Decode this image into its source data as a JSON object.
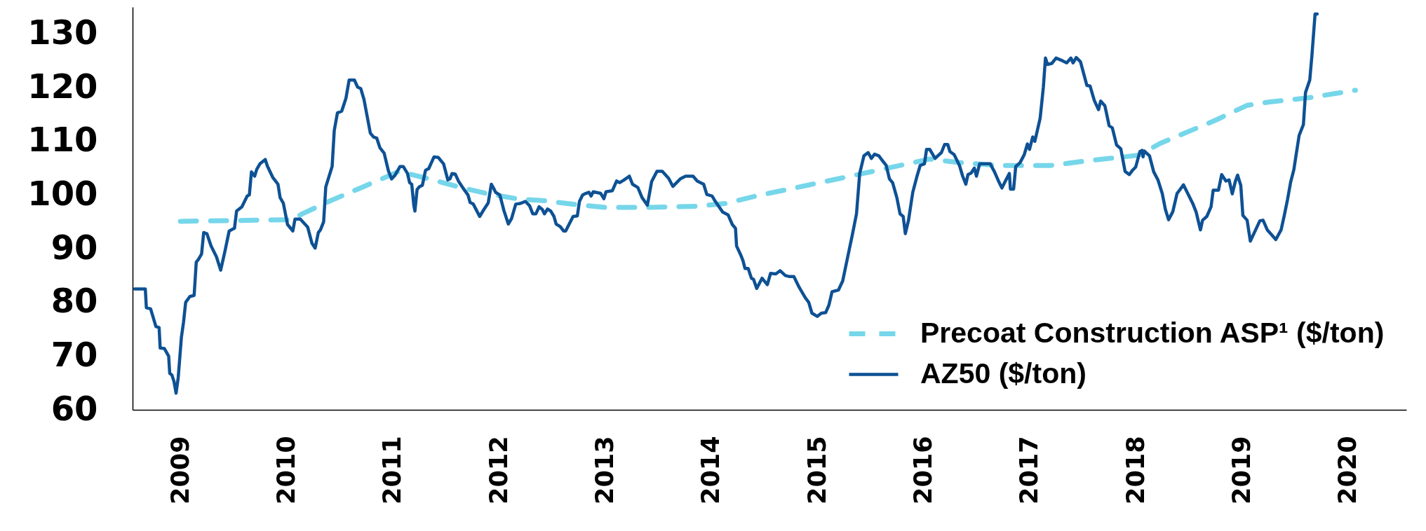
{
  "chart_data": {
    "type": "line",
    "xlim": [
      2008.55,
      2020.55
    ],
    "xticks": [
      2009,
      2010,
      2011,
      2012,
      2013,
      2014,
      2015,
      2016,
      2017,
      2018,
      2019,
      2020
    ],
    "ylim": [
      60,
      135
    ],
    "yticks": [
      60,
      70,
      80,
      90,
      100,
      110,
      120,
      130
    ],
    "grid": false,
    "legend": "bottom right",
    "marker": "none",
    "series": [
      {
        "name": "Precoat Construction ASP¹ ($/ton)",
        "color": "#76d6ea",
        "line_style": "dashed",
        "x": [
          2009.0,
          2010.05,
          2010.15,
          2010.4,
          2010.98,
          2011.06,
          2011.34,
          2011.62,
          2011.9,
          2012.17,
          2012.45,
          2012.73,
          2013.0,
          2013.39,
          2013.85,
          2014.13,
          2014.42,
          2014.93,
          2015.43,
          2016.06,
          2016.31,
          2016.7,
          2017.2,
          2017.6,
          2018.03,
          2018.23,
          2018.75,
          2019.05,
          2019.25,
          2019.63,
          2020.07
        ],
        "values": [
          95.1,
          95.4,
          96.5,
          98.8,
          103.7,
          104.4,
          103.0,
          101.5,
          100.2,
          99.3,
          98.9,
          98.2,
          97.7,
          97.7,
          97.9,
          98.4,
          99.8,
          101.9,
          104.0,
          106.7,
          106.1,
          105.5,
          105.5,
          106.5,
          107.4,
          109.6,
          113.9,
          116.7,
          117.3,
          118.1,
          119.5
        ]
      },
      {
        "name": "AZ50 ($/ton)",
        "color": "#0e5194",
        "line_style": "solid",
        "x": [
          2008.57,
          2008.67,
          2008.68,
          2008.72,
          2008.77,
          2008.8,
          2008.81,
          2008.85,
          2008.89,
          2008.9,
          2008.92,
          2008.94,
          2008.96,
          2008.98,
          2009.01,
          2009.03,
          2009.05,
          2009.09,
          2009.13,
          2009.15,
          2009.17,
          2009.2,
          2009.22,
          2009.25,
          2009.29,
          2009.34,
          2009.38,
          2009.42,
          2009.46,
          2009.51,
          2009.53,
          2009.58,
          2009.63,
          2009.65,
          2009.67,
          2009.7,
          2009.72,
          2009.75,
          2009.8,
          2009.82,
          2009.87,
          2009.92,
          2009.94,
          2009.97,
          2010.01,
          2010.06,
          2010.08,
          2010.13,
          2010.2,
          2010.24,
          2010.27,
          2010.3,
          2010.32,
          2010.35,
          2010.37,
          2010.43,
          2010.45,
          2010.48,
          2010.52,
          2010.56,
          2010.59,
          2010.64,
          2010.67,
          2010.7,
          2010.73,
          2010.79,
          2010.82,
          2010.85,
          2010.88,
          2010.92,
          2010.96,
          2010.99,
          2011.02,
          2011.07,
          2011.1,
          2011.14,
          2011.16,
          2011.18,
          2011.2,
          2011.21,
          2011.23,
          2011.25,
          2011.28,
          2011.31,
          2011.34,
          2011.39,
          2011.43,
          2011.45,
          2011.48,
          2011.52,
          2011.54,
          2011.56,
          2011.59,
          2011.62,
          2011.67,
          2011.71,
          2011.73,
          2011.76,
          2011.82,
          2011.86,
          2011.9,
          2011.93,
          2011.95,
          2011.97,
          2012.01,
          2012.05,
          2012.09,
          2012.12,
          2012.16,
          2012.2,
          2012.25,
          2012.29,
          2012.32,
          2012.35,
          2012.38,
          2012.41,
          2012.43,
          2012.46,
          2012.49,
          2012.52,
          2012.54,
          2012.58,
          2012.61,
          2012.63,
          2012.7,
          2012.74,
          2012.76,
          2012.79,
          2012.82,
          2012.85,
          2012.87,
          2012.89,
          2012.96,
          2012.99,
          2013.01,
          2013.07,
          2013.11,
          2013.14,
          2013.18,
          2013.23,
          2013.26,
          2013.31,
          2013.35,
          2013.4,
          2013.44,
          2013.49,
          2013.54,
          2013.6,
          2013.64,
          2013.71,
          2013.76,
          2013.83,
          2013.87,
          2013.93,
          2013.96,
          2014.01,
          2014.04,
          2014.11,
          2014.16,
          2014.2,
          2014.23,
          2014.24,
          2014.28,
          2014.3,
          2014.32,
          2014.35,
          2014.38,
          2014.4,
          2014.43,
          2014.48,
          2014.53,
          2014.56,
          2014.61,
          2014.65,
          2014.7,
          2014.74,
          2014.78,
          2014.83,
          2014.89,
          2014.92,
          2014.95,
          2015.0,
          2015.04,
          2015.08,
          2015.11,
          2015.14,
          2015.2,
          2015.24,
          2015.28,
          2015.33,
          2015.37,
          2015.4,
          2015.44,
          2015.48,
          2015.51,
          2015.54,
          2015.58,
          2015.61,
          2015.65,
          2015.68,
          2015.71,
          2015.75,
          2015.78,
          2015.81,
          2015.83,
          2015.86,
          2015.9,
          2015.94,
          2015.97,
          2016.01,
          2016.03,
          2016.06,
          2016.11,
          2016.17,
          2016.2,
          2016.23,
          2016.25,
          2016.29,
          2016.34,
          2016.37,
          2016.4,
          2016.42,
          2016.45,
          2016.48,
          2016.5,
          2016.53,
          2016.63,
          2016.67,
          2016.71,
          2016.74,
          2016.77,
          2016.81,
          2016.82,
          2016.85,
          2016.87,
          2016.91,
          2016.95,
          2016.98,
          2017.0,
          2017.03,
          2017.05,
          2017.1,
          2017.13,
          2017.15,
          2017.17,
          2017.21,
          2017.25,
          2017.31,
          2017.35,
          2017.39,
          2017.41,
          2017.44,
          2017.48,
          2017.54,
          2017.57,
          2017.61,
          2017.65,
          2017.67,
          2017.71,
          2017.75,
          2017.78,
          2017.82,
          2017.86,
          2017.9,
          2017.94,
          2017.97,
          2018.0,
          2018.04,
          2018.06,
          2018.07,
          2018.08,
          2018.13,
          2018.17,
          2018.21,
          2018.25,
          2018.28,
          2018.31,
          2018.35,
          2018.39,
          2018.41,
          2018.45,
          2018.49,
          2018.54,
          2018.57,
          2018.61,
          2018.63,
          2018.67,
          2018.71,
          2018.73,
          2018.78,
          2018.81,
          2018.85,
          2018.88,
          2018.91,
          2018.94,
          2018.96,
          2018.99,
          2019.01,
          2019.05,
          2019.08,
          2019.13,
          2019.17,
          2019.2,
          2019.24,
          2019.28,
          2019.32,
          2019.37,
          2019.4,
          2019.43,
          2019.46,
          2019.49,
          2019.51,
          2019.54,
          2019.58,
          2019.6,
          2019.64,
          2019.66,
          2019.69,
          2019.71
        ],
        "values": [
          82.5,
          82.5,
          79,
          78.8,
          75.5,
          75.3,
          71.5,
          71.4,
          70,
          66.8,
          66.5,
          65.3,
          63.1,
          66,
          73.5,
          76.3,
          80,
          81.1,
          81.3,
          87.5,
          88,
          89,
          93,
          92.8,
          90.5,
          88.5,
          86,
          89.5,
          93.3,
          93.8,
          97,
          97.8,
          99.8,
          100,
          104.3,
          103.5,
          104.8,
          105.8,
          106.6,
          105.4,
          103.3,
          102,
          99.5,
          98.5,
          94.5,
          93.3,
          95.5,
          95.5,
          94,
          91,
          90.1,
          93,
          93.5,
          95,
          101.5,
          105.3,
          112,
          115.3,
          115.6,
          118,
          121.4,
          121.4,
          120.1,
          119.8,
          117.8,
          111.5,
          110.8,
          110.6,
          108.8,
          107.8,
          104.5,
          103,
          103.6,
          105.3,
          105.3,
          104,
          102.3,
          102,
          98,
          97,
          101,
          101.5,
          101.8,
          104.6,
          104.9,
          107.1,
          107,
          106.5,
          105.8,
          102.8,
          103,
          104,
          103.9,
          102.6,
          101.1,
          100,
          98.6,
          98.3,
          96,
          97.3,
          98.5,
          102,
          101.3,
          100.5,
          100,
          97,
          94.6,
          95.6,
          98.3,
          98.4,
          98.8,
          98,
          96.5,
          96.5,
          97.8,
          97.3,
          96.5,
          97.4,
          97,
          96,
          94.6,
          94.1,
          93.3,
          93.3,
          96,
          96.1,
          98.8,
          100,
          100.3,
          100.5,
          99.8,
          100.6,
          100.3,
          99.3,
          100.6,
          100.8,
          102.6,
          102.3,
          102.8,
          103.5,
          102,
          101.4,
          99.5,
          98.1,
          102.5,
          104.4,
          104.4,
          103.1,
          101.6,
          103,
          103.5,
          103.5,
          102.6,
          102,
          100.1,
          99.8,
          98.8,
          96.8,
          96.3,
          94.5,
          93.8,
          90.5,
          88.8,
          87.8,
          86.3,
          86.3,
          84.5,
          84.3,
          82.6,
          84.5,
          83.3,
          85.4,
          85.3,
          85.9,
          85,
          84.8,
          84.8,
          82.8,
          80.8,
          80,
          78,
          77.4,
          78,
          78.1,
          79.5,
          82,
          82.3,
          84,
          87.8,
          92.5,
          96.5,
          104,
          107.3,
          107.9,
          106.8,
          107.6,
          107.3,
          106.5,
          105.5,
          103,
          102.3,
          99.5,
          96.5,
          96,
          92.8,
          95.3,
          100.5,
          103.5,
          105.5,
          105.8,
          108.5,
          108.5,
          106.8,
          107.9,
          109.4,
          109.4,
          108.1,
          107.5,
          105.5,
          103.5,
          102,
          103.8,
          104.1,
          105,
          103.5,
          105.8,
          105.8,
          104.3,
          102.5,
          101.3,
          102.5,
          104,
          101.1,
          101.1,
          105.3,
          106,
          107.5,
          109.5,
          108.5,
          110.8,
          110,
          114.3,
          120,
          125.5,
          124.3,
          124.5,
          125.5,
          125,
          124.6,
          125.5,
          124.6,
          125.6,
          124.8,
          120.4,
          120.3,
          117.6,
          115.9,
          117.5,
          116.6,
          112.9,
          112.5,
          109.3,
          108.6,
          104.4,
          103.8,
          104.6,
          105.2,
          108.1,
          108.3,
          107.1,
          108.2,
          107.3,
          104.3,
          102.8,
          100.3,
          97.3,
          95.4,
          96.9,
          100.3,
          100.8,
          101.9,
          100.3,
          98.3,
          96.8,
          93.5,
          95.3,
          96,
          97.8,
          100.9,
          100.9,
          103.8,
          102.6,
          102.8,
          100.2,
          102.6,
          103.7,
          101.8,
          96.2,
          95.3,
          91.4,
          93.5,
          95.2,
          95.3,
          93.5,
          92.6,
          91.7,
          93.5,
          96.2,
          99.1,
          102.4,
          104.7,
          107.3,
          111.1,
          113.1,
          119.1,
          121.4,
          125.9,
          133.7,
          133.7
        ]
      }
    ]
  }
}
